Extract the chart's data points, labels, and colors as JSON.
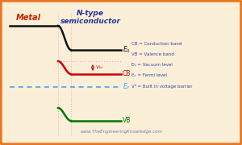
{
  "bg_color": "#fcefd8",
  "border_color": "#e87722",
  "title_metal": "Metal",
  "title_semi": "N-type\nsemiconductor",
  "legend_lines": [
    "CB = Conduction band",
    "VB = Valence band",
    "E₀ = Vacuum level",
    "Eₑ = Fermi level",
    "Vⁱᴵ = Built in voltage barrier"
  ],
  "website": "www.TheEngineeringKnowledge.com",
  "metal_color": "#111111",
  "cb_color": "#cc0000",
  "cb_dashed_color": "#ffaaaa",
  "ef_color": "#4499ee",
  "vb_color": "#007700",
  "arrow_color": "#cc0000",
  "dot_line_color": "#cc9999",
  "vert_dot_color": "#ddbbbb",
  "legend_color": "#3344aa",
  "website_color": "#7777aa"
}
